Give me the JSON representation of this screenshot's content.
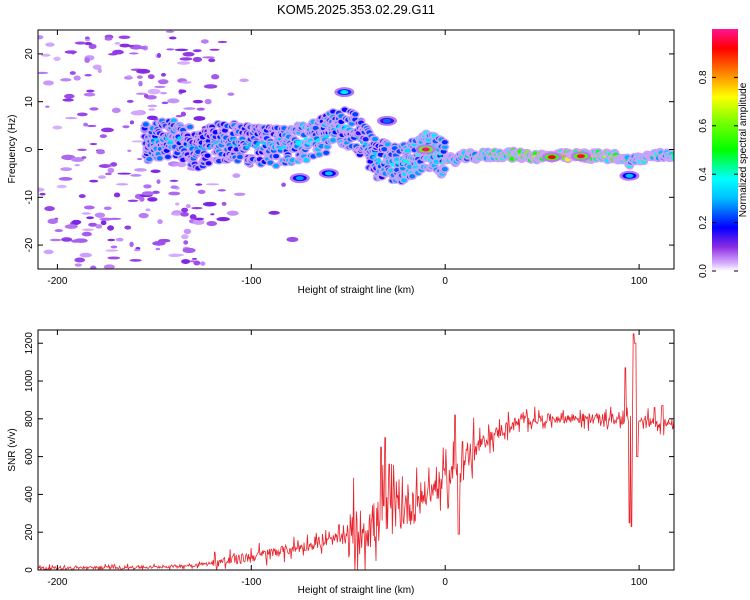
{
  "title": "KOM5.2025.353.02.29.G11",
  "colors": {
    "snr_line": "#e8222a",
    "axis": "#000000",
    "background": "#ffffff"
  },
  "chart_data": [
    {
      "type": "heatmap",
      "name": "spectrogram",
      "xlabel": "Height of straight line (km)",
      "ylabel": "Frequency (Hz)",
      "xlim": [
        -210,
        118
      ],
      "ylim": [
        -25,
        25
      ],
      "xticks": [
        -200,
        -100,
        0,
        100
      ],
      "yticks": [
        -20,
        -10,
        0,
        10,
        20
      ],
      "colorbar": {
        "label": "Normalized spectral amplitude",
        "range": [
          0,
          1
        ],
        "ticks": [
          "0.0",
          "0.2",
          "0.4",
          "0.6",
          "0.8"
        ],
        "tick_values": [
          0,
          0.2,
          0.4,
          0.6,
          0.8
        ]
      },
      "ridge": [
        {
          "x": -155,
          "f": 1.5,
          "a": 0.3
        },
        {
          "x": -140,
          "f": 2.5,
          "a": 0.35
        },
        {
          "x": -128,
          "f": 0.0,
          "a": 0.28
        },
        {
          "x": -115,
          "f": 1.8,
          "a": 0.32
        },
        {
          "x": -100,
          "f": 1.0,
          "a": 0.3
        },
        {
          "x": -85,
          "f": 0.5,
          "a": 0.34
        },
        {
          "x": -70,
          "f": 1.8,
          "a": 0.38
        },
        {
          "x": -60,
          "f": 3.5,
          "a": 0.33
        },
        {
          "x": -52,
          "f": 5.0,
          "a": 0.36
        },
        {
          "x": -45,
          "f": 3.0,
          "a": 0.3
        },
        {
          "x": -35,
          "f": -2.0,
          "a": 0.33
        },
        {
          "x": -25,
          "f": -3.0,
          "a": 0.38
        },
        {
          "x": -18,
          "f": -2.5,
          "a": 0.4
        },
        {
          "x": -10,
          "f": 0.0,
          "a": 0.45
        },
        {
          "x": -5,
          "f": -1.0,
          "a": 0.4
        },
        {
          "x": 0,
          "f": -2.5,
          "a": 0.4
        },
        {
          "x": 10,
          "f": -1.5,
          "a": 0.45
        },
        {
          "x": 30,
          "f": -1.0,
          "a": 0.55
        },
        {
          "x": 50,
          "f": -1.5,
          "a": 0.75
        },
        {
          "x": 70,
          "f": -1.3,
          "a": 0.85
        },
        {
          "x": 90,
          "f": -1.5,
          "a": 0.6
        },
        {
          "x": 95,
          "f": -2.5,
          "a": 0.45
        },
        {
          "x": 105,
          "f": -1.5,
          "a": 0.5
        },
        {
          "x": 118,
          "f": -1.0,
          "a": 0.45
        }
      ],
      "hotspots": [
        {
          "x": -10,
          "f": 0.0,
          "a": 0.98
        },
        {
          "x": 55,
          "f": -1.6,
          "a": 0.92
        },
        {
          "x": 70,
          "f": -1.4,
          "a": 0.95
        },
        {
          "x": -52,
          "f": 12.0,
          "a": 0.35
        },
        {
          "x": -60,
          "f": -5.0,
          "a": 0.3
        },
        {
          "x": -75,
          "f": -6.0,
          "a": 0.28
        },
        {
          "x": -30,
          "f": 6.0,
          "a": 0.25
        },
        {
          "x": 95,
          "f": -5.5,
          "a": 0.3
        }
      ]
    },
    {
      "type": "line",
      "name": "snr",
      "xlabel": "Height of straight line (km)",
      "ylabel": "SNR (v/v)",
      "xlim": [
        -210,
        118
      ],
      "ylim": [
        0,
        1270
      ],
      "xticks": [
        -200,
        -100,
        0,
        100
      ],
      "yticks": [
        0,
        200,
        400,
        600,
        800,
        1000,
        1200
      ],
      "trend": [
        {
          "x": -210,
          "y": 10
        },
        {
          "x": -150,
          "y": 15
        },
        {
          "x": -130,
          "y": 25
        },
        {
          "x": -110,
          "y": 50
        },
        {
          "x": -90,
          "y": 90
        },
        {
          "x": -70,
          "y": 130
        },
        {
          "x": -50,
          "y": 180
        },
        {
          "x": -40,
          "y": 220
        },
        {
          "x": -30,
          "y": 290
        },
        {
          "x": -20,
          "y": 340
        },
        {
          "x": -10,
          "y": 400
        },
        {
          "x": 0,
          "y": 470
        },
        {
          "x": 10,
          "y": 580
        },
        {
          "x": 20,
          "y": 680
        },
        {
          "x": 30,
          "y": 745
        },
        {
          "x": 40,
          "y": 790
        },
        {
          "x": 60,
          "y": 805
        },
        {
          "x": 80,
          "y": 800
        },
        {
          "x": 100,
          "y": 790
        },
        {
          "x": 118,
          "y": 770
        }
      ],
      "spikes": [
        {
          "x": -33,
          "y": 650
        },
        {
          "x": -31,
          "y": 700
        },
        {
          "x": -29,
          "y": 560
        },
        {
          "x": 5,
          "y": 820
        },
        {
          "x": 7,
          "y": 190
        },
        {
          "x": 9,
          "y": 680
        },
        {
          "x": 93,
          "y": 1070
        },
        {
          "x": 95,
          "y": 250
        },
        {
          "x": 96,
          "y": 230
        },
        {
          "x": 97,
          "y": 1250
        },
        {
          "x": 98,
          "y": 1200
        },
        {
          "x": 99,
          "y": 600
        },
        {
          "x": 108,
          "y": 860
        },
        {
          "x": 112,
          "y": 870
        }
      ]
    }
  ]
}
